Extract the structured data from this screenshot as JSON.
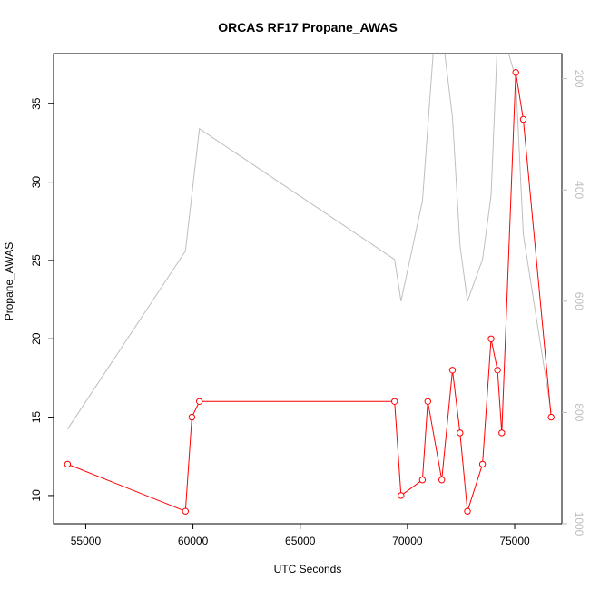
{
  "chart_data": {
    "type": "line",
    "title": "ORCAS RF17 Propane_AWAS",
    "xlabel": "UTC Seconds",
    "ylabel": "Propane_AWAS",
    "xlim": [
      53500,
      77200
    ],
    "ylim": [
      8.2,
      38.2
    ],
    "x_ticks": [
      55000,
      60000,
      65000,
      70000,
      75000
    ],
    "y_ticks": [
      10,
      15,
      20,
      25,
      30,
      35
    ],
    "y2_ticks": [
      200,
      400,
      600,
      800,
      1000
    ],
    "y2lim": [
      1000,
      155
    ],
    "y2_reversed": true,
    "grid": false,
    "colors": {
      "primary_series": "#ff0000",
      "secondary_series": "#bebebe",
      "frame": "#000000"
    },
    "series": [
      {
        "axis": "left",
        "marker": "open-circle",
        "x": [
          54150,
          59650,
          59950,
          60300,
          69400,
          69700,
          70700,
          70950,
          71600,
          72100,
          72450,
          72800,
          73500,
          73900,
          74200,
          74400,
          75050,
          75400,
          76700
        ],
        "values": [
          12,
          9,
          15,
          16,
          16,
          10,
          11,
          16,
          11,
          18,
          14,
          9,
          12,
          20,
          18,
          14,
          37,
          34,
          15
        ]
      },
      {
        "axis": "right",
        "marker": "none",
        "x": [
          54150,
          59650,
          60300,
          69400,
          69700,
          70700,
          71200,
          71600,
          72100,
          72450,
          72800,
          73500,
          73900,
          74200,
          74400,
          75050,
          75400,
          76700
        ],
        "values": [
          830,
          510,
          290,
          525,
          600,
          420,
          155,
          110,
          270,
          500,
          600,
          525,
          410,
          130,
          110,
          200,
          480,
          800
        ]
      }
    ]
  }
}
